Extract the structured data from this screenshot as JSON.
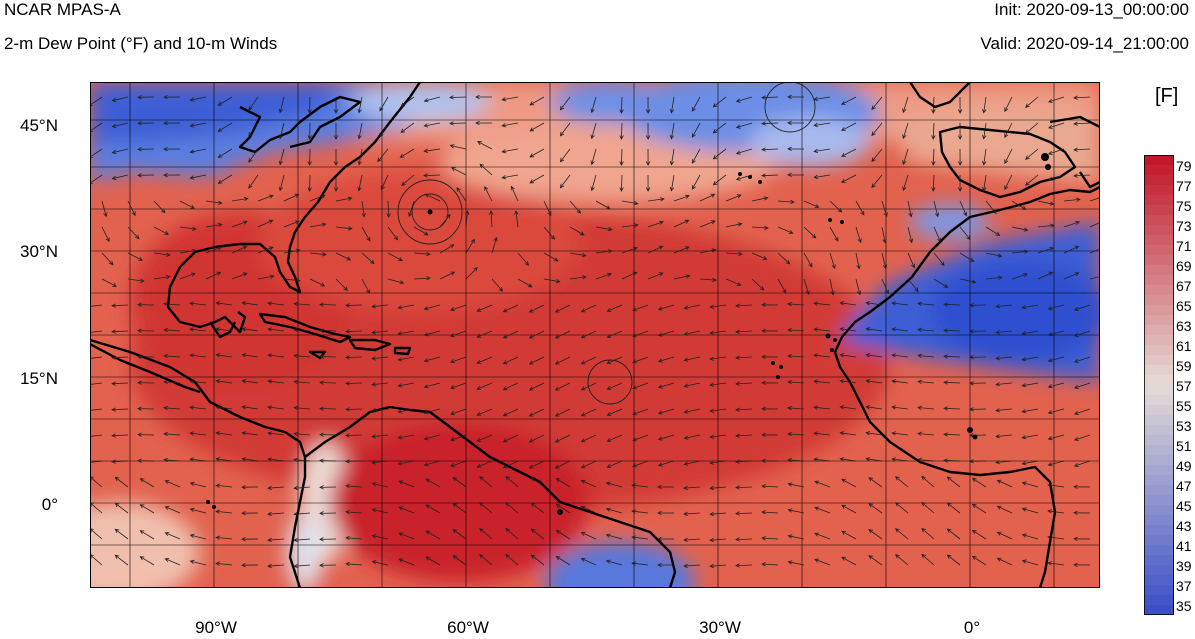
{
  "header": {
    "title_left": "NCAR MPAS-A",
    "subtitle_left": "2-m Dew Point (°F) and 10-m Winds",
    "init": "Init: 2020-09-13_00:00:00",
    "valid": "Valid: 2020-09-14_21:00:00"
  },
  "colorbar": {
    "units": "[F]",
    "tick_labels": [
      "79",
      "77",
      "75",
      "73",
      "71",
      "69",
      "67",
      "65",
      "63",
      "61",
      "59",
      "57",
      "55",
      "53",
      "51",
      "49",
      "47",
      "45",
      "43",
      "41",
      "39",
      "37",
      "35"
    ],
    "range": [
      34,
      80
    ],
    "low_color": "#3a4fc8",
    "mid_color": "#e6dcd6",
    "high_color": "#c2172a"
  },
  "map": {
    "lat_labels": [
      "45°N",
      "30°N",
      "15°N",
      "0°"
    ],
    "lon_labels": [
      "90°W",
      "60°W",
      "30°W",
      "0°"
    ],
    "lon_range": [
      -104,
      14
    ],
    "lat_range": [
      -10,
      50
    ],
    "field": "2-m Dew Point",
    "vector_field": "10-m Winds"
  }
}
